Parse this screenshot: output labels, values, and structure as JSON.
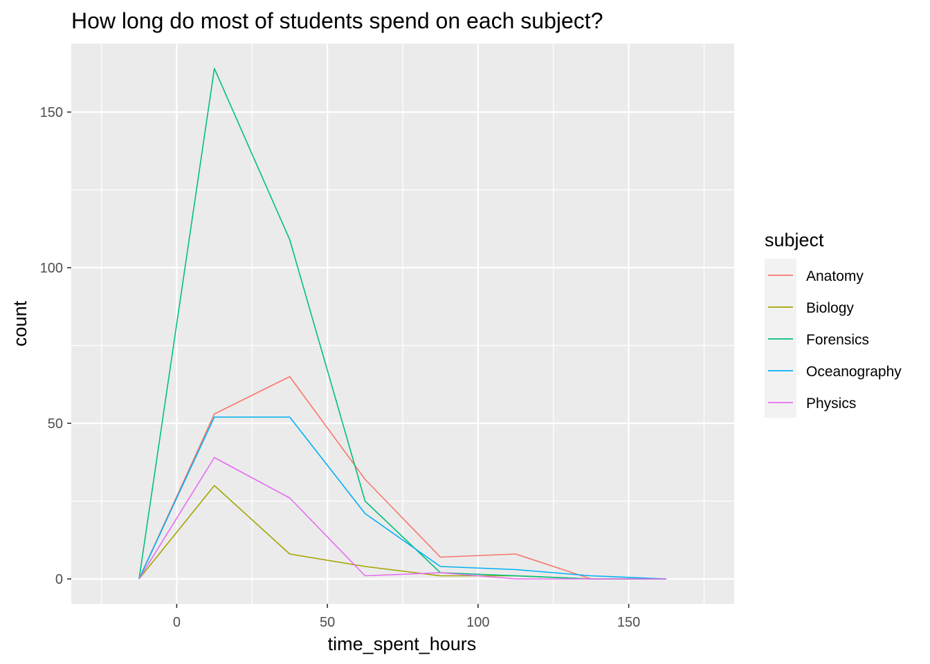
{
  "chart_data": {
    "type": "line",
    "title": "How long do most of students spend on each subject?",
    "xlabel": "time_spent_hours",
    "ylabel": "count",
    "xlim": [
      -35,
      185
    ],
    "ylim": [
      -8,
      172
    ],
    "x_ticks": [
      0,
      50,
      100,
      150
    ],
    "y_ticks": [
      0,
      50,
      100,
      150
    ],
    "grid": true,
    "legend": {
      "title": "subject",
      "position": "right"
    },
    "x": [
      -12.5,
      12.5,
      37.5,
      62.5,
      87.5,
      112.5,
      137.5,
      162.5
    ],
    "series": [
      {
        "name": "Anatomy",
        "color": "#F8766D",
        "values": [
          0,
          53,
          65,
          32,
          7,
          8,
          0,
          0
        ]
      },
      {
        "name": "Biology",
        "color": "#A3A500",
        "values": [
          0,
          30,
          8,
          4,
          1,
          1,
          0,
          0
        ]
      },
      {
        "name": "Forensics",
        "color": "#00BF7D",
        "values": [
          0,
          164,
          109,
          25,
          2,
          1,
          0,
          0
        ]
      },
      {
        "name": "Oceanography",
        "color": "#00B0F6",
        "values": [
          0,
          52,
          52,
          21,
          4,
          3,
          1,
          0
        ]
      },
      {
        "name": "Physics",
        "color": "#E76BF3",
        "values": [
          0,
          39,
          26,
          1,
          2,
          0,
          0,
          0
        ]
      }
    ]
  }
}
